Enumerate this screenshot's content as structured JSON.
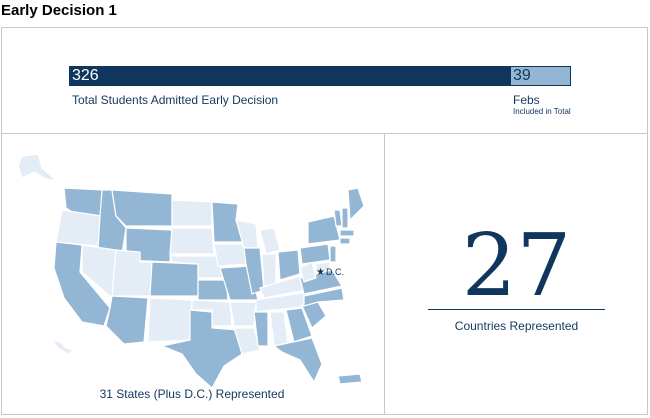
{
  "title": "Early Decision 1",
  "chart_data": [
    {
      "type": "bar",
      "orientation": "horizontal-stacked",
      "segments": [
        {
          "label": "Total Students Admitted Early Decision",
          "value": 326,
          "color": "#10365d"
        },
        {
          "label": "Febs",
          "sublabel": "Included in Total",
          "value": 39,
          "color": "#93b6d4"
        }
      ]
    },
    {
      "type": "map",
      "caption": "31 States (Plus D.C.) Represented",
      "dc_label": "D.C.",
      "highlight_color": "#93b6d4",
      "base_color": "#e4edf5"
    },
    {
      "type": "stat",
      "value": "27",
      "label": "Countries Represented"
    }
  ],
  "labels": {
    "main_value": "326",
    "main_label": "Total Students Admitted Early Decision",
    "feb_value": "39",
    "feb_label": "Febs",
    "feb_sublabel": "Included in Total",
    "map_caption": "31 States (Plus D.C.) Represented",
    "dc_label": "D.C.",
    "countries_value": "27",
    "countries_label": "Countries Represented"
  }
}
